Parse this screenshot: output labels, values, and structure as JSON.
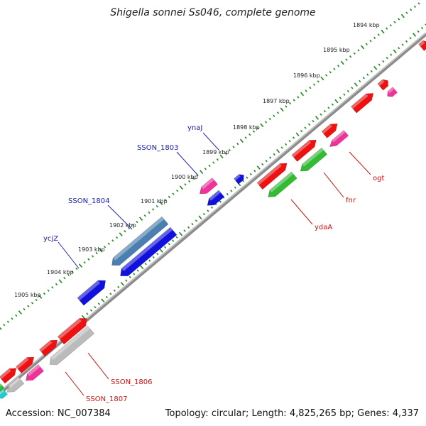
{
  "title": "Shigella sonnei Ss046, complete genome",
  "footer": {
    "accession_label": "Accession:",
    "accession": "NC_007384",
    "topology_label": "Topology:",
    "topology": "circular;",
    "length_label": "Length:",
    "length": "4,825,265 bp;",
    "genes_label": "Genes:",
    "genes": "4,337"
  },
  "ticks": [
    {
      "label": "1894 kbp"
    },
    {
      "label": "1895 kbp"
    },
    {
      "label": "1896 kbp"
    },
    {
      "label": "1897 kbp"
    },
    {
      "label": "1898 kbp"
    },
    {
      "label": "1899 kbp"
    },
    {
      "label": "1900 kbp"
    },
    {
      "label": "1901 kbp"
    },
    {
      "label": "1902 kbp"
    },
    {
      "label": "1903 kbp"
    },
    {
      "label": "1904 kbp"
    },
    {
      "label": "1905 kbp"
    }
  ],
  "gene_labels": [
    {
      "text": "ynaJ",
      "color": "#1a1aaa"
    },
    {
      "text": "SSON_1803",
      "color": "#1a1aaa"
    },
    {
      "text": "SSON_1804",
      "color": "#1a1aaa"
    },
    {
      "text": "ycjZ",
      "color": "#1a1aaa"
    },
    {
      "text": "ogt",
      "color": "#cc1111"
    },
    {
      "text": "fnr",
      "color": "#cc1111"
    },
    {
      "text": "ydaA",
      "color": "#cc1111"
    },
    {
      "text": "SSON_1806",
      "color": "#cc1111"
    },
    {
      "text": "SSON_1807",
      "color": "#cc1111"
    }
  ],
  "colors": {
    "backbone": "#808080",
    "tick_dots": "#2a8a2a",
    "red": "#ee1111",
    "pink": "#ee3399",
    "blue": "#1111dd",
    "steelblue": "#4a7fb0",
    "green": "#33bb33",
    "gray": "#bbbbbb",
    "cyan": "#22cccc",
    "label_line_blue": "#2222bb",
    "label_line_red": "#cc1111"
  }
}
